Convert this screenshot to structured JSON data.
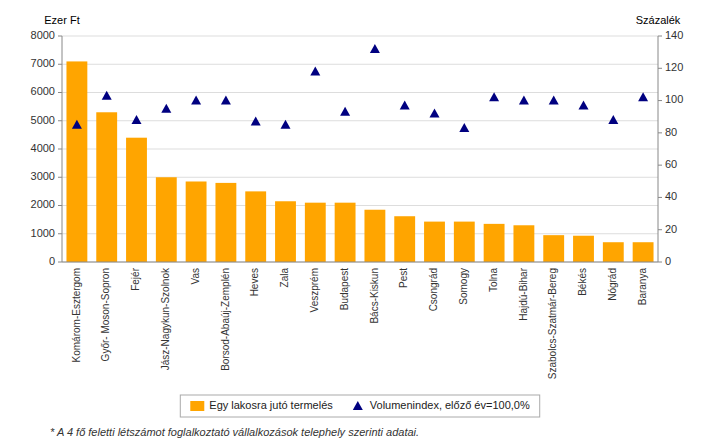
{
  "chart_data": {
    "type": "bar",
    "categories": [
      "Komárom-Esztergom",
      "Győr- Moson-Sopron",
      "Fejér",
      "Jász-Nagykun-Szolnok",
      "Vas",
      "Borsod-Abaúj-Zemplén",
      "Heves",
      "Zala",
      "Veszprém",
      "Budapest",
      "Bács-Kiskun",
      "Pest",
      "Csongrád",
      "Somogy",
      "Tolna",
      "Hajdú-Bihar",
      "Szabolcs-Szatmár-Bereg",
      "Békés",
      "Nógrád",
      "Baranya"
    ],
    "series": [
      {
        "name": "Egy lakosra jutó termelés",
        "type": "bar",
        "color": "#FFA500",
        "values": [
          7100,
          5300,
          4400,
          3000,
          2850,
          2800,
          2500,
          2150,
          2100,
          2100,
          1850,
          1620,
          1430,
          1430,
          1350,
          1300,
          950,
          930,
          700,
          700
        ]
      },
      {
        "name": "Volumenindex, előző év=100,0%",
        "type": "scatter",
        "marker": "triangle",
        "color": "#000080",
        "axis": "y2",
        "values": [
          85,
          103,
          88,
          95,
          100,
          100,
          87,
          85,
          118,
          93,
          132,
          97,
          92,
          83,
          102,
          100,
          100,
          97,
          88,
          102
        ]
      }
    ],
    "ylabel": "Ezer Ft",
    "y2label": "Százalék",
    "ylim": [
      0,
      8000
    ],
    "yticks": [
      0,
      1000,
      2000,
      3000,
      4000,
      5000,
      6000,
      7000,
      8000
    ],
    "y2lim": [
      0,
      140
    ],
    "y2ticks": [
      0,
      20,
      40,
      60,
      80,
      100,
      120,
      140
    ],
    "grid": true,
    "legend": "bottom",
    "annotations": [
      "* A 4 fő feletti létszámot foglalkoztató vállalkozások telephely szerinti adatai."
    ]
  }
}
